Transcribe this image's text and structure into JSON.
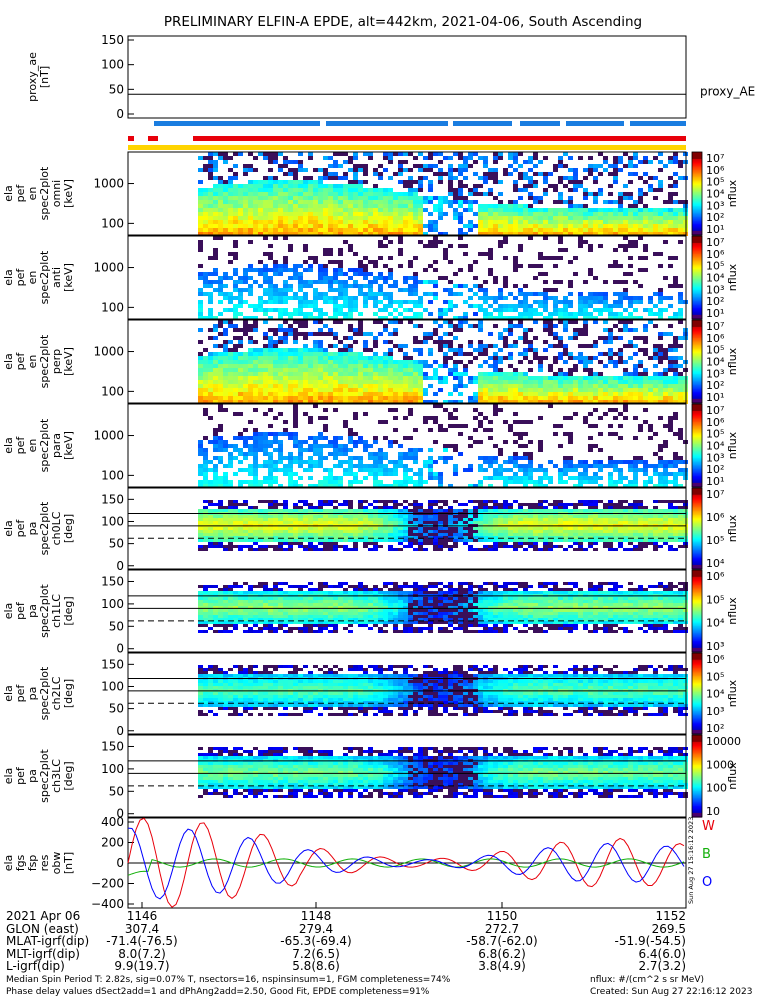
{
  "chart_data": {
    "type": "spectrogram",
    "title": "PRELIMINARY ELFIN-A EPDE, alt=442km, 2021-04-06, South Ascending",
    "panels": [
      {
        "id": "proxy_ae",
        "ylabel": [
          "proxy_ae",
          "[nT]"
        ],
        "yticks": [
          "150",
          "100",
          "50",
          "0"
        ],
        "ylim": [
          0,
          150
        ],
        "line_value": 40,
        "legend": "proxy_AE"
      },
      {
        "id": "en0",
        "ylabel": [
          "ela",
          "pef",
          "en",
          "spec2plot",
          "omni",
          "[keV]"
        ],
        "yticks": [
          "1000",
          "100"
        ],
        "cbar_label": "nflux",
        "cbar_ticks": [
          "10⁷",
          "10⁶",
          "10⁵",
          "10⁴",
          "10³",
          "10²",
          "10¹"
        ]
      },
      {
        "id": "en1",
        "ylabel": [
          "ela",
          "pef",
          "en",
          "spec2plot",
          "anti",
          "[keV]"
        ],
        "yticks": [
          "1000",
          "100"
        ],
        "cbar_label": "nflux",
        "cbar_ticks": [
          "10⁷",
          "10⁶",
          "10⁵",
          "10⁴",
          "10³",
          "10²",
          "10¹"
        ]
      },
      {
        "id": "en2",
        "ylabel": [
          "ela",
          "pef",
          "en",
          "spec2plot",
          "perp",
          "[keV]"
        ],
        "yticks": [
          "1000",
          "100"
        ],
        "cbar_label": "nflux",
        "cbar_ticks": [
          "10⁷",
          "10⁶",
          "10⁵",
          "10⁴",
          "10³",
          "10²",
          "10¹"
        ]
      },
      {
        "id": "en3",
        "ylabel": [
          "ela",
          "pef",
          "en",
          "spec2plot",
          "para",
          "[keV]"
        ],
        "yticks": [
          "1000",
          "100"
        ],
        "cbar_label": "nflux",
        "cbar_ticks": [
          "10⁷",
          "10⁶",
          "10⁵",
          "10⁴",
          "10³",
          "10²",
          "10¹"
        ]
      },
      {
        "id": "pa0",
        "ylabel": [
          "ela",
          "pef",
          "pa",
          "spec2plot",
          "ch0LC",
          "[deg]"
        ],
        "yticks": [
          "150",
          "100",
          "50",
          "0"
        ],
        "cbar_label": "nflux",
        "cbar_ticks": [
          "10⁷",
          "10⁶",
          "10⁵",
          "10⁴"
        ]
      },
      {
        "id": "pa1",
        "ylabel": [
          "ela",
          "pef",
          "pa",
          "spec2plot",
          "ch1LC",
          "[deg]"
        ],
        "yticks": [
          "150",
          "100",
          "50",
          "0"
        ],
        "cbar_label": "nflux",
        "cbar_ticks": [
          "10⁶",
          "10⁵",
          "10⁴",
          "10³"
        ]
      },
      {
        "id": "pa2",
        "ylabel": [
          "ela",
          "pef",
          "pa",
          "spec2plot",
          "ch2LC",
          "[deg]"
        ],
        "yticks": [
          "150",
          "100",
          "50",
          "0"
        ],
        "cbar_label": "nflux",
        "cbar_ticks": [
          "10⁶",
          "10⁵",
          "10⁴",
          "10³",
          "10²"
        ]
      },
      {
        "id": "pa3",
        "ylabel": [
          "ela",
          "pef",
          "pa",
          "spec2plot",
          "ch3LC",
          "[deg]"
        ],
        "yticks": [
          "150",
          "100",
          "50",
          "0"
        ],
        "cbar_label": "nflux",
        "cbar_ticks": [
          "10000",
          "1000",
          "100",
          "10"
        ]
      },
      {
        "id": "fgs",
        "ylabel": [
          "ela",
          "fgs",
          "fsp",
          "res",
          "obw",
          "[nT]"
        ],
        "yticks": [
          "400",
          "200",
          "0",
          "−200",
          "−400"
        ],
        "ylim": [
          -400,
          400
        ],
        "legend": [
          "W",
          "B",
          "O"
        ],
        "series_colors": [
          "#e8000b",
          "#13b00b",
          "#0000ff"
        ],
        "stamp": "Sun Aug 27 15:16:12 2023"
      }
    ],
    "xaxis": {
      "rows": [
        {
          "label": "2021 Apr 06",
          "values": [
            "1146",
            "1148",
            "1150",
            "1152"
          ]
        },
        {
          "label": "GLON (east)",
          "values": [
            "307.4",
            "279.4",
            "272.7",
            "269.5"
          ]
        },
        {
          "label": "MLAT-igrf(dip)",
          "values": [
            "-71.4(-76.5)",
            "-65.3(-69.4)",
            "-58.7(-62.0)",
            "-51.9(-54.5)"
          ]
        },
        {
          "label": "MLT-igrf(dip)",
          "values": [
            "8.0(7.2)",
            "7.2(6.5)",
            "6.8(6.2)",
            "6.4(6.0)"
          ]
        },
        {
          "label": "L-igrf(dip)",
          "values": [
            "9.9(19.7)",
            "5.8(8.6)",
            "3.8(4.9)",
            "2.7(3.2)"
          ]
        }
      ]
    },
    "footer": {
      "line1": "Median Spin Period T: 2.82s, sig=0.07% T, nsectors=16, nspinsinsum=1, FGM completeness=74%",
      "line2": "Phase delay values dSect2add=1 and dPhAng2add=2.50, Good Fit, EPDE completeness=91%",
      "right1": "nflux: #/(cm^2 s sr MeV)",
      "right2": "Created: Sun Aug 27 22:16:12 2023"
    },
    "colors": {
      "bar_blue": "#1a7de0",
      "bar_red": "#e8000b",
      "bar_yellow": "#ffd400"
    }
  }
}
